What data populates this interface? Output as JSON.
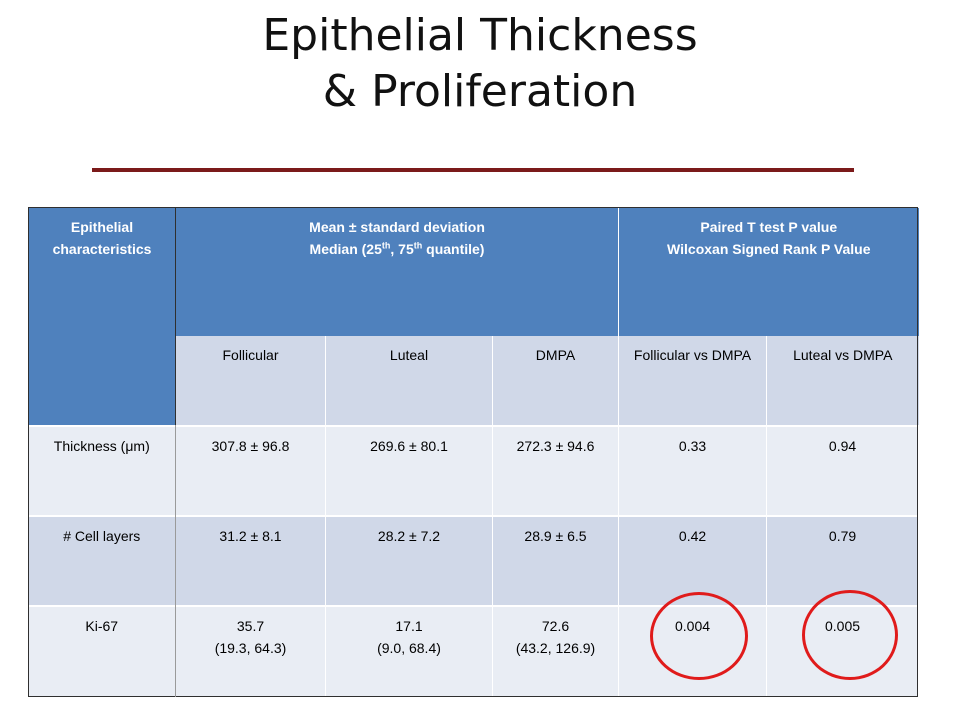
{
  "slide": {
    "title_line1": "Epithelial Thickness",
    "title_line2": "& Proliferation"
  },
  "table": {
    "header": {
      "col1_line1": "Epithelial",
      "col1_line2": "characteristics",
      "mean_line1": "Mean ± standard deviation",
      "mean_line2_pre": "Median (25",
      "mean_sup1": "th",
      "mean_line2_mid": ", 75",
      "mean_sup2": "th",
      "mean_line2_post": " quantile)",
      "pval_line1": "Paired T test P value",
      "pval_line2": "Wilcoxan Signed Rank  P Value"
    },
    "subheaders": [
      "Follicular",
      "Luteal",
      "DMPA",
      "Follicular vs DMPA",
      "Luteal vs DMPA"
    ],
    "rows": [
      {
        "label": "Thickness (μm)",
        "follicular": "307.8 ± 96.8",
        "luteal": "269.6 ± 80.1",
        "dmpa": "272.3 ± 94.6",
        "fol_vs_dmpa": "0.33",
        "lut_vs_dmpa": "0.94"
      },
      {
        "label": "# Cell layers",
        "follicular": "31.2 ± 8.1",
        "luteal": "28.2 ± 7.2",
        "dmpa": "28.9 ± 6.5",
        "fol_vs_dmpa": "0.42",
        "lut_vs_dmpa": "0.79"
      },
      {
        "label": "Ki-67",
        "follicular": "35.7",
        "follicular_range": "(19.3, 64.3)",
        "luteal": "17.1",
        "luteal_range": "(9.0, 68.4)",
        "dmpa": "72.6",
        "dmpa_range": "(43.2, 126.9)",
        "fol_vs_dmpa": "0.004",
        "lut_vs_dmpa": "0.005"
      }
    ]
  },
  "colors": {
    "header_blue": "#4f81bd",
    "band_dark": "#d0d8e8",
    "band_light": "#e9edf4",
    "title_rule": "#7b1a1a",
    "highlight_circle": "#e01b1b"
  }
}
